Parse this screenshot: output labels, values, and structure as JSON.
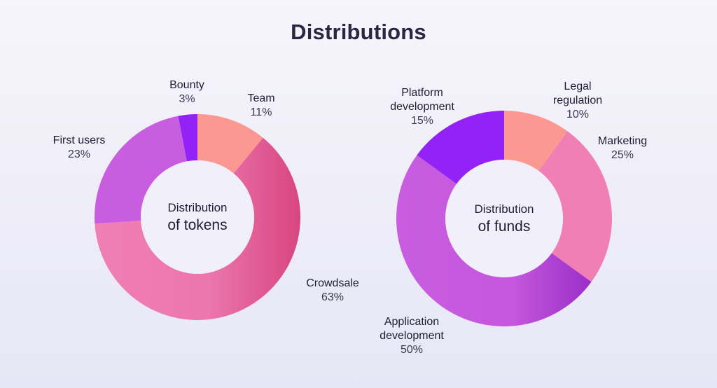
{
  "title": "Distributions",
  "colors": {
    "salmon": "#fb9891",
    "pink": "#ef7fb5",
    "pink_dark": "#dc4984",
    "orchid": "#c95de0",
    "violet": "#9222f5",
    "magenta_dark": "#9b2ec9"
  },
  "chart_data": [
    {
      "type": "pie",
      "center_label": [
        "Distribution",
        "of tokens"
      ],
      "slices": [
        {
          "name": "Team",
          "label": "Team",
          "value": 11,
          "pct_label": "11%",
          "color": "#fb9891"
        },
        {
          "name": "Crowdsale",
          "label": "Crowdsale",
          "value": 63,
          "pct_label": "63%",
          "color": "#ef7fb5"
        },
        {
          "name": "First users",
          "label": "First users",
          "value": 23,
          "pct_label": "23%",
          "color": "#c95de0"
        },
        {
          "name": "Bounty",
          "label": "Bounty",
          "value": 3,
          "pct_label": "3%",
          "color": "#9222f5"
        }
      ]
    },
    {
      "type": "pie",
      "center_label": [
        "Distribution",
        "of funds"
      ],
      "slices": [
        {
          "name": "Legal regulation",
          "label": "Legal\nregulation",
          "value": 10,
          "pct_label": "10%",
          "color": "#fb9891"
        },
        {
          "name": "Marketing",
          "label": "Marketing",
          "value": 25,
          "pct_label": "25%",
          "color": "#ef7fb5"
        },
        {
          "name": "Application development",
          "label": "Application\ndevelopment",
          "value": 50,
          "pct_label": "50%",
          "color": "#c95de0"
        },
        {
          "name": "Platform development",
          "label": "Platform\ndevelopment",
          "value": 15,
          "pct_label": "15%",
          "color": "#9222f5"
        }
      ]
    }
  ]
}
